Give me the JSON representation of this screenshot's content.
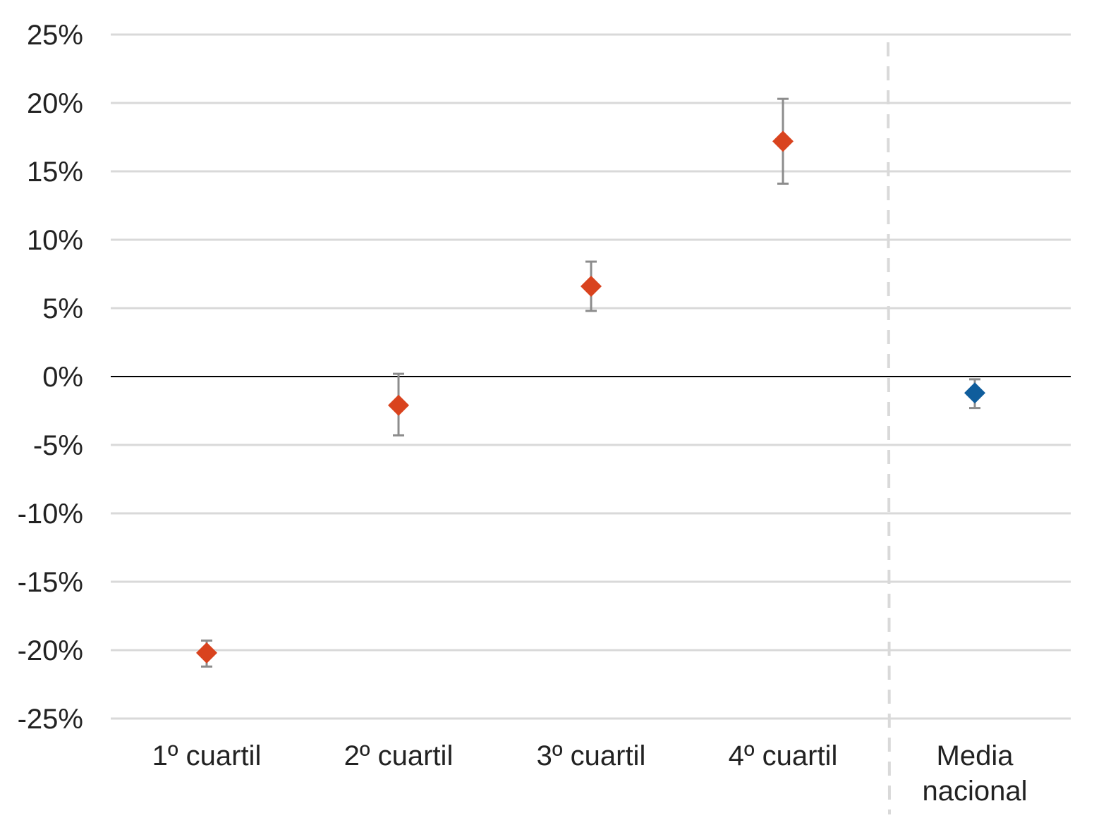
{
  "chart_data": {
    "type": "scatter",
    "title": "",
    "xlabel": "",
    "ylabel": "",
    "ylim": [
      -25,
      25
    ],
    "y_ticks": [
      25,
      20,
      15,
      10,
      5,
      0,
      -5,
      -10,
      -15,
      -20,
      -25
    ],
    "y_tick_labels": [
      "25%",
      "20%",
      "15%",
      "10%",
      "5%",
      "0%",
      "-5%",
      "-10%",
      "-15%",
      "-20%",
      "-25%"
    ],
    "grid": true,
    "zero_line": true,
    "categories": [
      [
        "1º cuartil"
      ],
      [
        "2º cuartil"
      ],
      [
        "3º cuartil"
      ],
      [
        "4º cuartil"
      ],
      [
        "Media",
        "nacional"
      ]
    ],
    "values": [
      -20.2,
      -2.1,
      6.6,
      17.2,
      -1.2
    ],
    "error_low": [
      -21.2,
      -4.3,
      4.8,
      14.1,
      -2.3
    ],
    "error_high": [
      -19.3,
      0.2,
      8.4,
      20.3,
      -0.2
    ],
    "point_colors": [
      "#d9431e",
      "#d9431e",
      "#d9431e",
      "#d9431e",
      "#0f5d9c"
    ],
    "marker": "diamond",
    "separator": {
      "style": "dashed",
      "between_categories": [
        3,
        4
      ]
    },
    "colors": {
      "quartile": "#d9431e",
      "national": "#0f5d9c",
      "error_bar": "#8c8c8c",
      "grid": "#d9d9d9",
      "zero_line": "#000000",
      "separator": "#d9d9d9"
    }
  }
}
